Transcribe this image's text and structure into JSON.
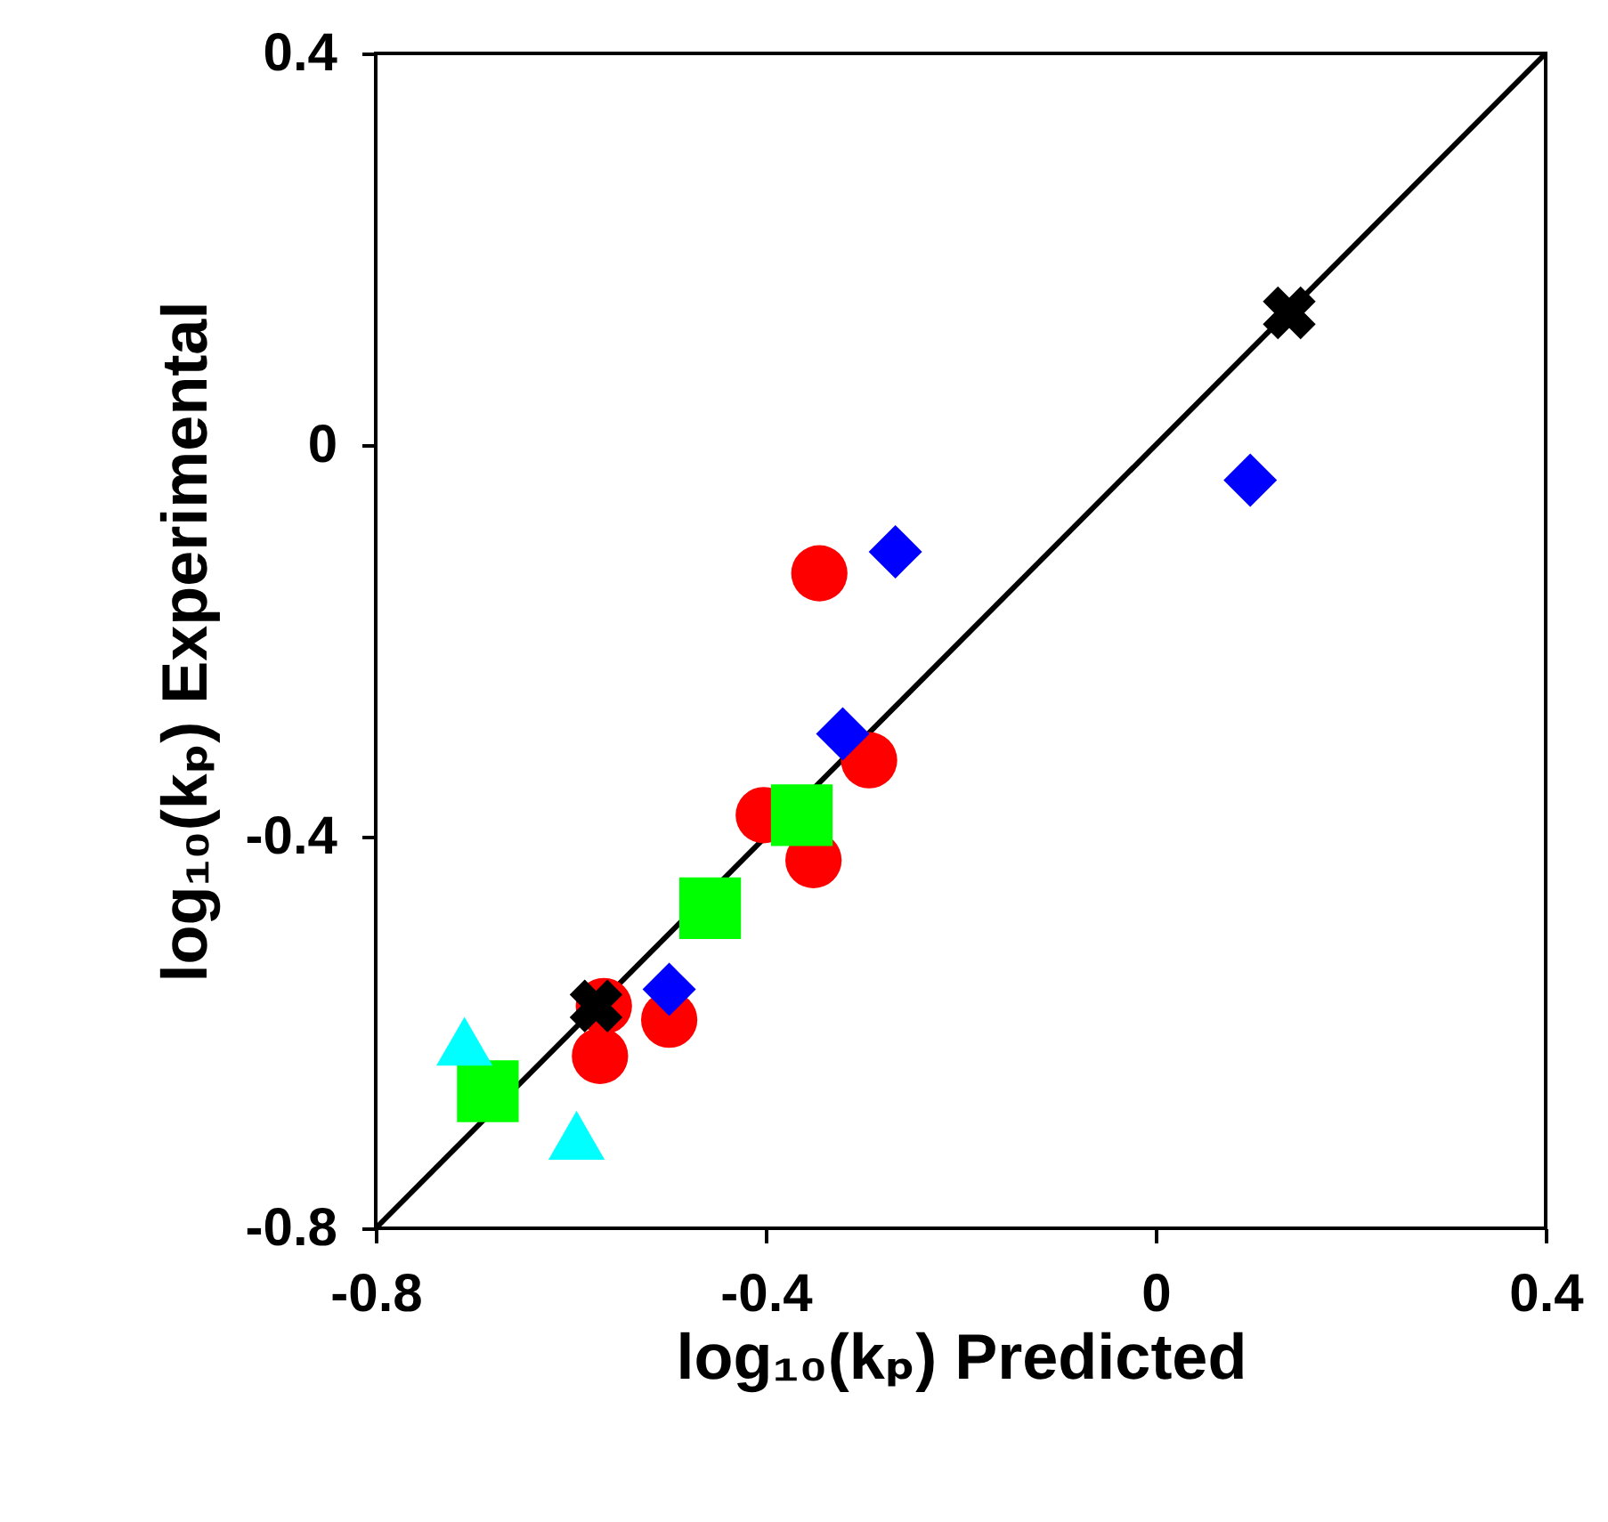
{
  "chart_data": {
    "type": "scatter",
    "xlabel": "log₁₀(kₚ)  Predicted",
    "ylabel": "log₁₀(kₚ)  Experimental",
    "xlim": [
      -0.8,
      0.4
    ],
    "ylim": [
      -0.8,
      0.4
    ],
    "xticks": [
      -0.8,
      -0.4,
      0,
      0.4
    ],
    "yticks": [
      -0.8,
      -0.4,
      0,
      0.4
    ],
    "grid": false,
    "legend": false,
    "series": [
      {
        "type": "line",
        "color": "#000000",
        "marker": "none",
        "line_style": "solid",
        "x": [
          -0.8,
          0.4
        ],
        "values": [
          -0.8,
          0.4
        ]
      },
      {
        "color": "#ff0000",
        "marker": "circle",
        "x": [
          -0.345,
          -0.294,
          -0.402,
          -0.351,
          -0.566,
          -0.57,
          -0.499
        ],
        "values": [
          -0.131,
          -0.322,
          -0.378,
          -0.424,
          -0.573,
          -0.624,
          -0.587
        ]
      },
      {
        "color": "#00ff00",
        "marker": "square",
        "x": [
          -0.363,
          -0.457,
          -0.685
        ],
        "values": [
          -0.378,
          -0.473,
          -0.66
        ]
      },
      {
        "color": "#0000ff",
        "marker": "diamond",
        "x": [
          -0.267,
          -0.321,
          -0.499,
          0.097
        ],
        "values": [
          -0.109,
          -0.295,
          -0.556,
          -0.036
        ]
      },
      {
        "color": "#00ffff",
        "marker": "triangle",
        "x": [
          -0.709,
          -0.594
        ],
        "values": [
          -0.609,
          -0.705
        ]
      },
      {
        "color": "#000000",
        "marker": "cross",
        "x": [
          -0.574,
          0.137
        ],
        "values": [
          -0.573,
          0.135
        ]
      }
    ]
  }
}
